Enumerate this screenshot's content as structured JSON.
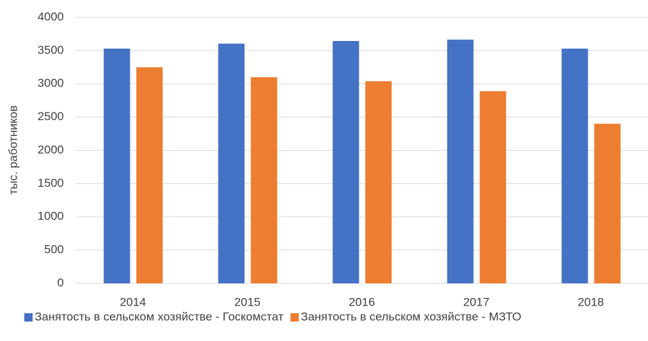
{
  "chart_data": {
    "type": "bar",
    "y_label": "тыс. работников",
    "categories": [
      "2014",
      "2015",
      "2016",
      "2017",
      "2018"
    ],
    "series": [
      {
        "name": "Занятость в сельском хозяйстве - Госкомстат",
        "color": "#4472c4",
        "values": [
          3530,
          3605,
          3645,
          3665,
          3530
        ]
      },
      {
        "name": "Занятость в сельском хозяйстве - МЗТО",
        "color": "#ed7d31",
        "values": [
          3250,
          3100,
          3040,
          2890,
          2400
        ]
      }
    ],
    "ylim": [
      0,
      4000
    ],
    "yticks": [
      0,
      500,
      1000,
      1500,
      2000,
      2500,
      3000,
      3500,
      4000
    ],
    "grid": true,
    "legend": "bottom"
  }
}
